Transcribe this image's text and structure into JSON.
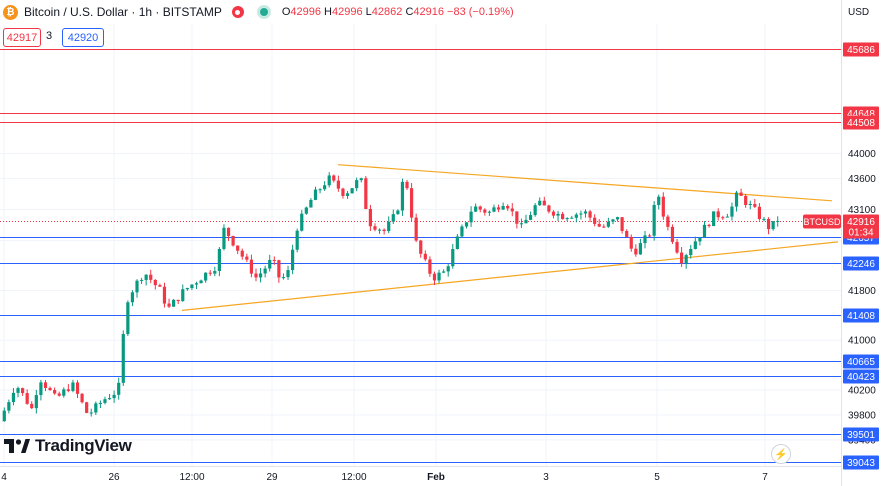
{
  "header": {
    "symbol_title": "Bitcoin / U.S. Dollar · 1h · BITSTAMP",
    "coin_icon": "bitcoin-icon",
    "ohlc": {
      "o_label": "O",
      "o_value": "42996",
      "h_label": "H",
      "h_value": "42996",
      "l_label": "L",
      "l_value": "42862",
      "c_label": "C",
      "c_value": "42916",
      "change": "−83 (−0.19%)"
    },
    "sell_price": "42917",
    "spread": "3",
    "buy_price": "42920",
    "currency": "USD"
  },
  "branding": {
    "logo_text": "TradingView"
  },
  "colors": {
    "up": "#089981",
    "down": "#f23645",
    "resistance": "#f23645",
    "support": "#2962ff",
    "trendline": "#f5a623",
    "grid": "#f0f3fa",
    "axis_text": "#131722"
  },
  "chart_data": {
    "type": "candlestick",
    "symbol_label": "BTCUSD",
    "last_price": "42916",
    "countdown": "01:34",
    "y_axis": {
      "range": [
        38980,
        46080
      ],
      "tick_labels": [
        "44000",
        "43600",
        "43100",
        "42600",
        "41800",
        "41000",
        "40200",
        "39800",
        "39400"
      ]
    },
    "x_axis": {
      "tick_labels": [
        "4",
        "26",
        "12:00",
        "29",
        "12:00",
        "Feb",
        "3",
        "5",
        "7"
      ]
    },
    "horizontal_levels": [
      {
        "label": "45686",
        "value": 45686,
        "kind": "resistance"
      },
      {
        "label": "44648",
        "value": 44648,
        "kind": "resistance"
      },
      {
        "label": "44508",
        "value": 44508,
        "kind": "resistance"
      },
      {
        "label": "42657",
        "value": 42657,
        "kind": "support"
      },
      {
        "label": "42246",
        "value": 42246,
        "kind": "support"
      },
      {
        "label": "41408",
        "value": 41408,
        "kind": "support"
      },
      {
        "label": "40665",
        "value": 40665,
        "kind": "support"
      },
      {
        "label": "40423",
        "value": 40423,
        "kind": "support"
      },
      {
        "label": "39501",
        "value": 39501,
        "kind": "support"
      },
      {
        "label": "39043",
        "value": 39043,
        "kind": "support"
      }
    ],
    "trendlines": [
      {
        "name": "upper",
        "start": 43820,
        "end": 43240
      },
      {
        "name": "lower",
        "start": 41480,
        "end": 42580
      }
    ],
    "path_anchors": [
      [
        0.0,
        39700
      ],
      [
        0.02,
        40300
      ],
      [
        0.04,
        39900
      ],
      [
        0.05,
        40400
      ],
      [
        0.07,
        40050
      ],
      [
        0.09,
        40300
      ],
      [
        0.11,
        39800
      ],
      [
        0.13,
        40050
      ],
      [
        0.148,
        40200
      ],
      [
        0.155,
        41200
      ],
      [
        0.16,
        41700
      ],
      [
        0.18,
        42100
      ],
      [
        0.2,
        41800
      ],
      [
        0.21,
        41500
      ],
      [
        0.23,
        41800
      ],
      [
        0.25,
        42000
      ],
      [
        0.27,
        42200
      ],
      [
        0.28,
        42800
      ],
      [
        0.3,
        42400
      ],
      [
        0.32,
        42000
      ],
      [
        0.34,
        42300
      ],
      [
        0.35,
        41950
      ],
      [
        0.36,
        42100
      ],
      [
        0.37,
        42800
      ],
      [
        0.39,
        43300
      ],
      [
        0.41,
        43600
      ],
      [
        0.43,
        43350
      ],
      [
        0.45,
        43600
      ],
      [
        0.46,
        42900
      ],
      [
        0.48,
        42750
      ],
      [
        0.495,
        43050
      ],
      [
        0.505,
        43700
      ],
      [
        0.52,
        42500
      ],
      [
        0.54,
        42000
      ],
      [
        0.555,
        42100
      ],
      [
        0.57,
        42600
      ],
      [
        0.59,
        43150
      ],
      [
        0.61,
        43050
      ],
      [
        0.63,
        43250
      ],
      [
        0.65,
        42800
      ],
      [
        0.67,
        43200
      ],
      [
        0.7,
        43000
      ],
      [
        0.73,
        43050
      ],
      [
        0.75,
        42800
      ],
      [
        0.77,
        42950
      ],
      [
        0.79,
        42400
      ],
      [
        0.81,
        42700
      ],
      [
        0.82,
        43400
      ],
      [
        0.83,
        42900
      ],
      [
        0.85,
        42300
      ],
      [
        0.87,
        42650
      ],
      [
        0.89,
        43000
      ],
      [
        0.91,
        43050
      ],
      [
        0.92,
        43350
      ],
      [
        0.94,
        43100
      ],
      [
        0.96,
        42800
      ],
      [
        0.97,
        42916
      ]
    ]
  }
}
